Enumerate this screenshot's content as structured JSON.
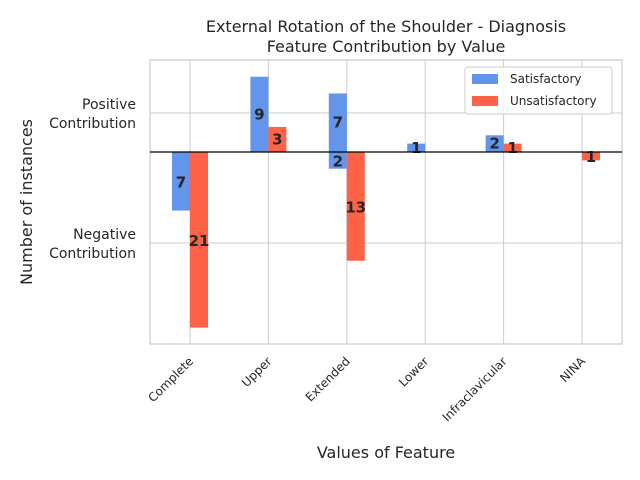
{
  "chart_data": {
    "type": "bar",
    "title_line1": "External Rotation of the Shoulder - Diagnosis",
    "title_line2": "Feature Contribution by Value",
    "xlabel": "Values of Feature",
    "ylabel": "Number of instances",
    "ytick_labels": [
      {
        "line1": "Positive",
        "line2": "Contribution"
      },
      {
        "line1": "Negative",
        "line2": "Contribution"
      }
    ],
    "categories": [
      "Complete",
      "Upper",
      "Extended",
      "Lower",
      "Infraclavicular",
      "NINA"
    ],
    "series": [
      {
        "name": "Satisfactory",
        "color": "#6495ed",
        "positive": [
          0,
          9,
          7,
          1,
          2,
          0
        ],
        "negative": [
          7,
          0,
          2,
          0,
          0,
          0
        ]
      },
      {
        "name": "Unsatisfactory",
        "color": "#ff6347",
        "positive": [
          0,
          3,
          0,
          0,
          1,
          0
        ],
        "negative": [
          21,
          0,
          13,
          0,
          0,
          1
        ]
      }
    ],
    "ylim": [
      -22.5,
      11
    ],
    "grid": true,
    "legend_position": "upper right"
  }
}
